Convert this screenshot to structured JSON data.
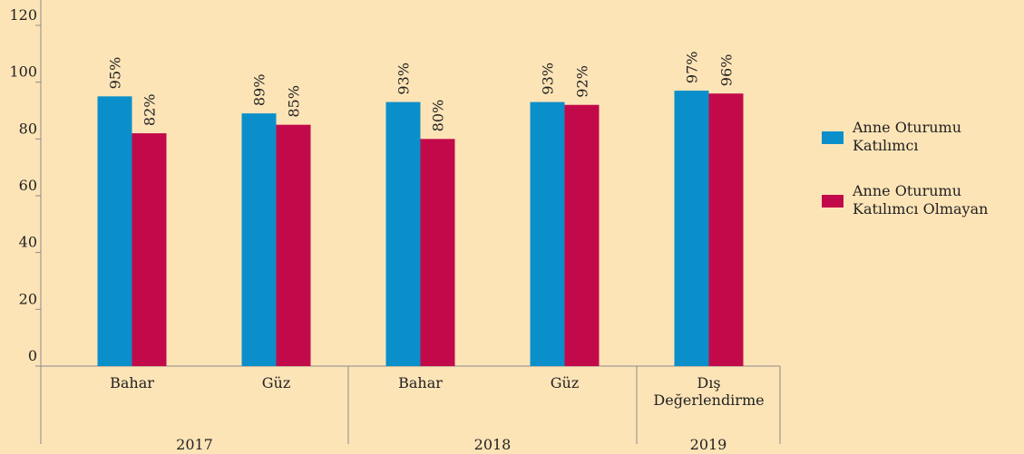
{
  "chart_data": {
    "type": "bar",
    "categories": [
      "Bahar",
      "Güz",
      "Bahar",
      "Güz",
      "Dış\nDeğerlendirme"
    ],
    "groups": [
      {
        "label": "2017",
        "count": 2
      },
      {
        "label": "2018",
        "count": 2
      },
      {
        "label": "2019",
        "count": 1
      }
    ],
    "series": [
      {
        "name": "Anne Oturumu Katılımcı",
        "color": "#0b8fca",
        "values": [
          95,
          89,
          93,
          93,
          97
        ],
        "value_labels": [
          "95%",
          "89%",
          "93%",
          "93%",
          "97%"
        ]
      },
      {
        "name": "Anne Oturumu Katılımcı Olmayan",
        "color": "#c20a4a",
        "values": [
          82,
          85,
          80,
          92,
          96
        ],
        "value_labels": [
          "82%",
          "85%",
          "80%",
          "92%",
          "96%"
        ]
      }
    ],
    "ylim": [
      0,
      120
    ],
    "yticks": [
      0,
      20,
      40,
      60,
      80,
      100,
      120
    ],
    "grid": false,
    "legend": "right"
  }
}
